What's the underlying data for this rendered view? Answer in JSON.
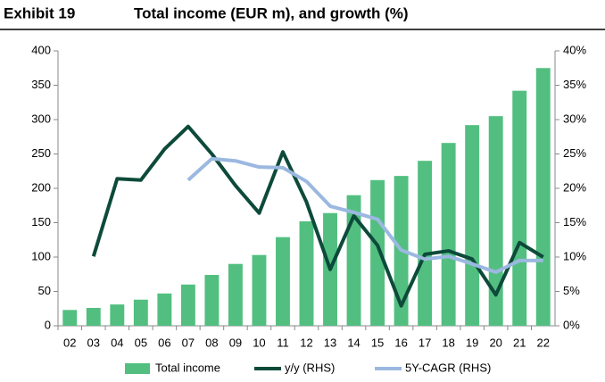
{
  "chart_data": {
    "type": "bar",
    "exhibit": "Exhibit 19",
    "title": "Total income (EUR m), and growth (%)",
    "categories": [
      "02",
      "03",
      "04",
      "05",
      "06",
      "07",
      "08",
      "09",
      "10",
      "11",
      "12",
      "13",
      "14",
      "15",
      "16",
      "17",
      "18",
      "19",
      "20",
      "21",
      "22"
    ],
    "series": [
      {
        "name": "Total income",
        "type": "bar",
        "color": "#52bf80",
        "values": [
          23,
          26,
          31,
          38,
          47,
          60,
          74,
          90,
          103,
          129,
          152,
          164,
          190,
          212,
          218,
          240,
          266,
          292,
          305,
          342,
          375
        ]
      },
      {
        "name": "y/y (RHS)",
        "type": "line",
        "axis": "y2",
        "color": "#0d4a3a",
        "values": [
          null,
          10.1,
          21.4,
          21.2,
          25.7,
          29,
          25,
          20.4,
          16.4,
          25.3,
          18,
          8.2,
          16,
          11.7,
          2.9,
          10.4,
          10.9,
          9.7,
          4.5,
          12.1,
          10
        ]
      },
      {
        "name": "5Y-CAGR (RHS)",
        "type": "line",
        "axis": "y2",
        "color": "#9bb8e0",
        "values": [
          null,
          null,
          null,
          null,
          null,
          21.2,
          24.3,
          24,
          23.1,
          23,
          21,
          17.4,
          16.5,
          15.5,
          11,
          9.7,
          10.1,
          9,
          7.8,
          9.5,
          9.5
        ]
      }
    ],
    "ylim": [
      0,
      400
    ],
    "yticks": [
      0,
      50,
      100,
      150,
      200,
      250,
      300,
      350,
      400
    ],
    "y2lim": [
      0,
      40
    ],
    "y2ticks": [
      {
        "value": 0,
        "label": "0%"
      },
      {
        "value": 5,
        "label": "5%"
      },
      {
        "value": 10,
        "label": "10%"
      },
      {
        "value": 15,
        "label": "15%"
      },
      {
        "value": 20,
        "label": "20%"
      },
      {
        "value": 25,
        "label": "25%"
      },
      {
        "value": 30,
        "label": "30%"
      },
      {
        "value": 35,
        "label": "35%"
      },
      {
        "value": 40,
        "label": "40%"
      }
    ],
    "grid": false,
    "legend": "bottom"
  }
}
